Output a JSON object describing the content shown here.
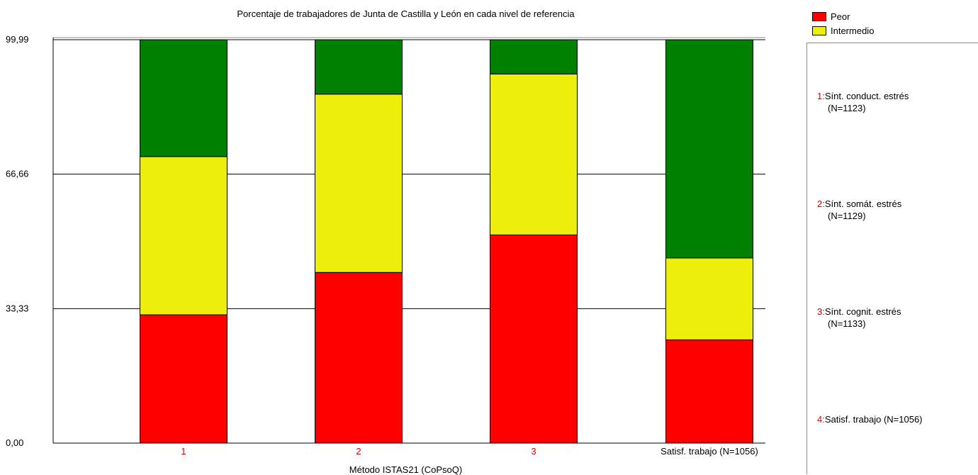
{
  "chart_data": {
    "type": "bar",
    "stacked": true,
    "title": "Porcentaje de trabajadores de Junta de Castilla y León en cada nivel de referencia",
    "xlabel": "Método ISTAS21 (CoPsoQ)",
    "ylabel": "",
    "ylim": [
      0,
      99.99
    ],
    "yticks": [
      "0,00",
      "33,33",
      "66,66",
      "99,99"
    ],
    "grid": true,
    "categories": [
      "1",
      "2",
      "3",
      "Satisf. trabajo (N=1056)"
    ],
    "series": [
      {
        "name": "Peor",
        "color": "#ff0000",
        "values": [
          31.8,
          42.3,
          51.6,
          25.6
        ]
      },
      {
        "name": "Intermedio",
        "color": "#eeee0c",
        "values": [
          39.2,
          44.2,
          39.9,
          20.3
        ]
      },
      {
        "name": "",
        "color": "#008000",
        "values": [
          28.99,
          13.49,
          8.49,
          54.09
        ]
      }
    ],
    "legend_position": "top-right"
  },
  "keys": [
    {
      "num": "1:",
      "line1": "Sínt. conduct. estrés",
      "line2": "(N=1123)"
    },
    {
      "num": "2:",
      "line1": "Sínt. somát. estrés",
      "line2": "(N=1129)"
    },
    {
      "num": "3:",
      "line1": "Sínt. cognit. estrés",
      "line2": "(N=1133)"
    },
    {
      "num": "4:",
      "line1": "Satisf. trabajo (N=1056)",
      "line2": ""
    }
  ],
  "colors": {
    "category_label": "#e00000",
    "grid": "#000000"
  }
}
